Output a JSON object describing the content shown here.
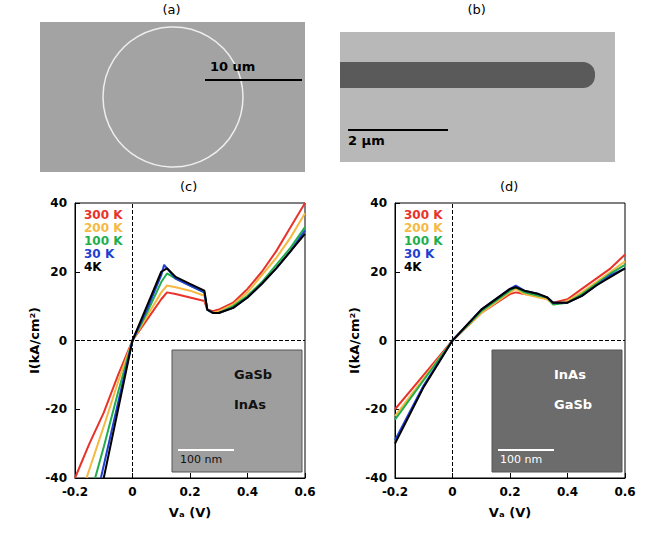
{
  "images": [
    {
      "panel_label": "(a)",
      "scale_bar": "10 um"
    },
    {
      "panel_label": "(b)",
      "scale_bar": "2 µm"
    }
  ],
  "chart_data": [
    {
      "type": "line",
      "panel_label": "(c)",
      "xlabel": "Vₐ (V)",
      "ylabel": "I(kA/cm²)",
      "xlim": [
        -0.2,
        0.6
      ],
      "ylim": [
        -40,
        40
      ],
      "xticks": [
        -0.2,
        0,
        0.2,
        0.4,
        0.6
      ],
      "yticks": [
        -40,
        -20,
        0,
        20,
        40
      ],
      "legend": "upper left",
      "annotations": [
        "GaSb",
        "InAs",
        "100 nm"
      ],
      "series": [
        {
          "name": "300 K",
          "color": "#e8322a",
          "x": [
            -0.2,
            -0.15,
            -0.1,
            -0.05,
            0,
            0.05,
            0.1,
            0.12,
            0.15,
            0.2,
            0.25,
            0.26,
            0.28,
            0.3,
            0.35,
            0.4,
            0.45,
            0.5,
            0.55,
            0.6
          ],
          "values": [
            -40,
            -30,
            -21,
            -10,
            0,
            6,
            12,
            14,
            13.5,
            12.5,
            11.5,
            9,
            8.5,
            9,
            11,
            15,
            20,
            26,
            33,
            40
          ]
        },
        {
          "name": "200 K",
          "color": "#f5b942",
          "x": [
            -0.16,
            -0.1,
            -0.05,
            0,
            0.05,
            0.1,
            0.12,
            0.15,
            0.2,
            0.25,
            0.26,
            0.28,
            0.3,
            0.35,
            0.4,
            0.45,
            0.5,
            0.55,
            0.6
          ],
          "values": [
            -40,
            -25,
            -12,
            0,
            7,
            14,
            16,
            15.5,
            14.5,
            13,
            9,
            8,
            8.5,
            10.5,
            14,
            19,
            24,
            30,
            37
          ]
        },
        {
          "name": "100 K",
          "color": "#1fae4b",
          "x": [
            -0.13,
            -0.1,
            -0.05,
            0,
            0.05,
            0.1,
            0.12,
            0.15,
            0.2,
            0.25,
            0.26,
            0.28,
            0.3,
            0.35,
            0.4,
            0.45,
            0.5,
            0.55,
            0.6
          ],
          "values": [
            -40,
            -31,
            -15,
            0,
            8,
            17,
            19.5,
            18,
            16,
            14,
            9,
            8,
            8,
            10,
            13,
            17,
            22,
            27,
            33
          ]
        },
        {
          "name": "30 K",
          "color": "#1f3fd1",
          "x": [
            -0.11,
            -0.08,
            -0.05,
            0,
            0.05,
            0.1,
            0.11,
            0.12,
            0.15,
            0.2,
            0.25,
            0.26,
            0.28,
            0.3,
            0.35,
            0.4,
            0.45,
            0.5,
            0.55,
            0.6
          ],
          "values": [
            -40,
            -29,
            -18,
            0,
            9,
            19,
            22,
            21,
            18,
            16,
            14,
            9,
            8,
            8,
            9.5,
            12.5,
            16.5,
            21,
            26,
            32
          ]
        },
        {
          "name": "4K",
          "color": "#000000",
          "x": [
            -0.1,
            -0.05,
            0,
            0.05,
            0.1,
            0.12,
            0.15,
            0.2,
            0.25,
            0.26,
            0.28,
            0.3,
            0.35,
            0.4,
            0.45,
            0.5,
            0.55,
            0.6
          ],
          "values": [
            -40,
            -20,
            0,
            10,
            20,
            21,
            18.5,
            16.5,
            14.5,
            9,
            8,
            8,
            9.5,
            12.5,
            16.5,
            21,
            26,
            31
          ]
        }
      ]
    },
    {
      "type": "line",
      "panel_label": "(d)",
      "xlabel": "Vₐ (V)",
      "ylabel": "I(kA/cm²)",
      "xlim": [
        -0.2,
        0.6
      ],
      "ylim": [
        -40,
        40
      ],
      "xticks": [
        -0.2,
        0,
        0.2,
        0.4,
        0.6
      ],
      "yticks": [
        -40,
        -20,
        0,
        20,
        40
      ],
      "legend": "upper left",
      "annotations": [
        "InAs",
        "GaSb",
        "100 nm"
      ],
      "series": [
        {
          "name": "300 K",
          "color": "#e8322a",
          "x": [
            -0.2,
            -0.1,
            0,
            0.1,
            0.2,
            0.22,
            0.25,
            0.3,
            0.33,
            0.35,
            0.4,
            0.45,
            0.5,
            0.55,
            0.6
          ],
          "values": [
            -20,
            -10,
            0,
            8,
            13.5,
            14,
            13.5,
            13,
            12,
            11,
            12,
            15,
            18,
            21,
            25
          ]
        },
        {
          "name": "200 K",
          "color": "#f5b942",
          "x": [
            -0.2,
            -0.1,
            0,
            0.1,
            0.2,
            0.22,
            0.25,
            0.3,
            0.33,
            0.35,
            0.4,
            0.45,
            0.5,
            0.55,
            0.6
          ],
          "values": [
            -22,
            -11,
            0,
            8,
            14,
            15,
            13.5,
            12.5,
            12,
            10.5,
            11.5,
            14,
            17,
            20,
            23
          ]
        },
        {
          "name": "100 K",
          "color": "#1fae4b",
          "x": [
            -0.2,
            -0.1,
            0,
            0.1,
            0.2,
            0.22,
            0.25,
            0.3,
            0.33,
            0.35,
            0.4,
            0.45,
            0.5,
            0.55,
            0.6
          ],
          "values": [
            -23,
            -11.5,
            0,
            8.5,
            14.5,
            15.5,
            14,
            13,
            12.5,
            10.5,
            11,
            13.5,
            16.5,
            19.5,
            22
          ]
        },
        {
          "name": "30 K",
          "color": "#1f3fd1",
          "x": [
            -0.2,
            -0.1,
            0,
            0.1,
            0.2,
            0.22,
            0.25,
            0.3,
            0.33,
            0.35,
            0.4,
            0.45,
            0.5,
            0.55,
            0.6
          ],
          "values": [
            -29,
            -13,
            0,
            9,
            15,
            16,
            14.5,
            13.5,
            12.5,
            11,
            11,
            13,
            16,
            19,
            21
          ]
        },
        {
          "name": "4K",
          "color": "#000000",
          "x": [
            -0.2,
            -0.1,
            0,
            0.1,
            0.2,
            0.22,
            0.25,
            0.3,
            0.33,
            0.35,
            0.4,
            0.45,
            0.5,
            0.55,
            0.6
          ],
          "values": [
            -30,
            -13.5,
            0,
            9,
            15,
            15.5,
            14.5,
            13.5,
            12.5,
            11,
            11,
            13,
            16,
            18.5,
            21
          ]
        }
      ]
    }
  ]
}
